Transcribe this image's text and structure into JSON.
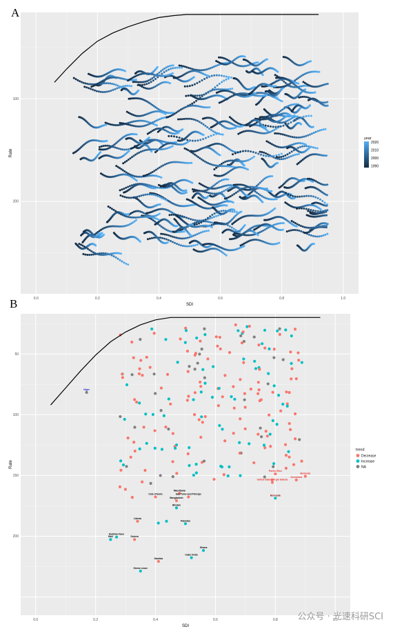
{
  "chart_data": [
    {
      "panel": "A",
      "type": "scatter",
      "xlabel": "SDI",
      "ylabel": "Rate",
      "xlim": [
        -0.05,
        1.05
      ],
      "ylim": [
        290,
        16
      ],
      "y_reversed": true,
      "x_ticks": [
        "0.0",
        "0.2",
        "0.4",
        "0.6",
        "0.8",
        "1.0"
      ],
      "y_ticks": [
        "100",
        "200"
      ],
      "legend": {
        "title": "year",
        "position": "right",
        "labels": [
          "2020",
          "2010",
          "2000",
          "1990"
        ],
        "colors": [
          "#56B1F7",
          "#3a7fb8",
          "#26547e",
          "#132B43"
        ]
      },
      "grid": true,
      "frontier": [
        [
          0.06,
          84
        ],
        [
          0.1,
          71
        ],
        [
          0.15,
          56
        ],
        [
          0.2,
          44
        ],
        [
          0.25,
          36
        ],
        [
          0.3,
          30
        ],
        [
          0.35,
          25
        ],
        [
          0.4,
          21
        ],
        [
          0.45,
          19
        ],
        [
          0.49,
          18
        ],
        [
          0.55,
          18
        ],
        [
          0.6,
          18
        ],
        [
          0.7,
          18
        ],
        [
          0.8,
          18
        ],
        [
          0.92,
          18
        ]
      ],
      "series_description": "Country trajectories 1990-2020, colour encodes year"
    },
    {
      "panel": "B",
      "type": "scatter",
      "xlabel": "SDI",
      "ylabel": "Rate",
      "xlim": [
        -0.05,
        1.05
      ],
      "ylim": [
        265,
        17
      ],
      "y_reversed": true,
      "x_ticks": [
        "0.0",
        "0.2",
        "0.4",
        "0.6",
        "0.8",
        "1.0"
      ],
      "y_ticks": [
        "50",
        "100",
        "150",
        "200"
      ],
      "legend": {
        "title": "trend",
        "position": "right",
        "labels": [
          "Decrease",
          "Increase",
          "NA"
        ],
        "colors": [
          "#F8766D",
          "#00BFC4",
          "#7F7F7F"
        ]
      },
      "grid": true,
      "frontier": [
        [
          0.05,
          92
        ],
        [
          0.1,
          78
        ],
        [
          0.15,
          64
        ],
        [
          0.2,
          51
        ],
        [
          0.25,
          40
        ],
        [
          0.3,
          32
        ],
        [
          0.35,
          26
        ],
        [
          0.4,
          22
        ],
        [
          0.45,
          20
        ],
        [
          0.5,
          20
        ],
        [
          0.6,
          20
        ],
        [
          0.7,
          20
        ],
        [
          0.8,
          20
        ],
        [
          0.95,
          20
        ]
      ],
      "labeled_countries": [
        {
          "name": "Niger",
          "x": 0.17,
          "y": 80,
          "trend": "NA",
          "color": "#2222cc"
        },
        {
          "name": "Puerto Rico",
          "x": 0.8,
          "y": 147,
          "trend": "Decrease",
          "color": "#e8332e"
        },
        {
          "name": "Bermuda",
          "x": 0.9,
          "y": 149,
          "trend": "Decrease",
          "color": "#e8332e"
        },
        {
          "name": "Greenland",
          "x": 0.87,
          "y": 152,
          "trend": "Decrease",
          "color": "#e8332e"
        },
        {
          "name": "United States Virgin Islands",
          "x": 0.79,
          "y": 154,
          "trend": "Decrease",
          "color": "#e8332e"
        },
        {
          "name": "Bermuda",
          "x": 0.8,
          "y": 167,
          "trend": "Increase",
          "color": "#8b0000"
        },
        {
          "name": "Mauritania",
          "x": 0.48,
          "y": 163,
          "trend": "Decrease",
          "color": "#000000"
        },
        {
          "name": "Sao Tome and Principe",
          "x": 0.51,
          "y": 166,
          "trend": "Decrease",
          "color": "#000000"
        },
        {
          "name": "Cote d'Ivoire",
          "x": 0.4,
          "y": 166,
          "trend": "Decrease",
          "color": "#000000"
        },
        {
          "name": "Bangladesh",
          "x": 0.47,
          "y": 169,
          "trend": "Decrease",
          "color": "#000000"
        },
        {
          "name": "Bhutan",
          "x": 0.47,
          "y": 175,
          "trend": "Increase",
          "color": "#000000"
        },
        {
          "name": "Liberia",
          "x": 0.34,
          "y": 186,
          "trend": "Decrease",
          "color": "#000000"
        },
        {
          "name": "Pakistan",
          "x": 0.5,
          "y": 188,
          "trend": "Increase",
          "color": "#000000"
        },
        {
          "name": "Burkina Faso",
          "x": 0.27,
          "y": 199,
          "trend": "Increase",
          "color": "#000000"
        },
        {
          "name": "Mali",
          "x": 0.25,
          "y": 201,
          "trend": "Increase",
          "color": "#000000"
        },
        {
          "name": "Guinea",
          "x": 0.33,
          "y": 201,
          "trend": "Decrease",
          "color": "#000000"
        },
        {
          "name": "Ghana",
          "x": 0.56,
          "y": 210,
          "trend": "Increase",
          "color": "#000000"
        },
        {
          "name": "Cabo Verde",
          "x": 0.52,
          "y": 216,
          "trend": "Increase",
          "color": "#000000"
        },
        {
          "name": "Gambia",
          "x": 0.41,
          "y": 219,
          "trend": "Decrease",
          "color": "#000000"
        },
        {
          "name": "Sierra Leone",
          "x": 0.35,
          "y": 227,
          "trend": "Increase",
          "color": "#000000"
        }
      ]
    }
  ],
  "watermark": "公众号 · 光速科研SCI"
}
